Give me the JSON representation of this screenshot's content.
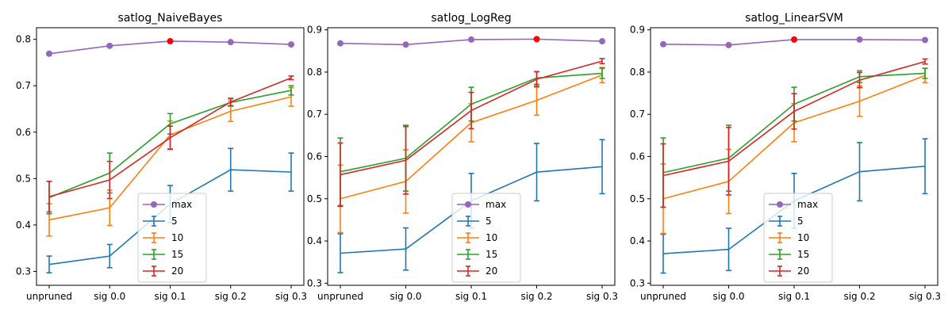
{
  "chart_data": [
    {
      "type": "line",
      "title": "satlog_NaiveBayes",
      "categories": [
        "unpruned",
        "sig 0.0",
        "sig 0.1",
        "sig 0.2",
        "sig 0.3"
      ],
      "ylim": [
        0.27,
        0.825
      ],
      "yticks": [
        0.3,
        0.4,
        0.5,
        0.6,
        0.7,
        0.8
      ],
      "ytick_labels": [
        "0.3",
        "0.4",
        "0.5",
        "0.6",
        "0.7",
        "0.8"
      ],
      "legend_placement": "lower-center",
      "max_series": {
        "name": "max",
        "color": "#9467bd",
        "values": [
          0.769,
          0.786,
          0.796,
          0.794,
          0.789
        ],
        "best_index": 2,
        "best_color": "#ff0000"
      },
      "series": [
        {
          "name": "5",
          "color": "#1f77b4",
          "values": [
            0.315,
            0.333,
            0.445,
            0.519,
            0.514
          ],
          "errors": [
            0.018,
            0.025,
            0.04,
            0.046,
            0.041
          ]
        },
        {
          "name": "10",
          "color": "#ff7f0e",
          "values": [
            0.411,
            0.437,
            0.594,
            0.645,
            0.676
          ],
          "errors": [
            0.035,
            0.038,
            0.03,
            0.022,
            0.02
          ]
        },
        {
          "name": "15",
          "color": "#2ca02c",
          "values": [
            0.459,
            0.512,
            0.618,
            0.664,
            0.69
          ],
          "errors": [
            0.035,
            0.043,
            0.022,
            0.008,
            0.01
          ]
        },
        {
          "name": "20",
          "color": "#d62728",
          "values": [
            0.461,
            0.497,
            0.588,
            0.665,
            0.717
          ],
          "errors": [
            0.033,
            0.04,
            0.025,
            0.008,
            0.004
          ]
        }
      ]
    },
    {
      "type": "line",
      "title": "satlog_LogReg",
      "categories": [
        "unpruned",
        "sig 0.0",
        "sig 0.1",
        "sig 0.2",
        "sig 0.3"
      ],
      "ylim": [
        0.295,
        0.905
      ],
      "yticks": [
        0.3,
        0.4,
        0.5,
        0.6,
        0.7,
        0.8,
        0.9
      ],
      "ytick_labels": [
        "0.3",
        "0.4",
        "0.5",
        "0.6",
        "0.7",
        "0.8",
        "0.9"
      ],
      "legend_placement": "lower-center",
      "max_series": {
        "name": "max",
        "color": "#9467bd",
        "values": [
          0.868,
          0.865,
          0.877,
          0.878,
          0.873
        ],
        "best_index": 3,
        "best_color": "#ff0000"
      },
      "series": [
        {
          "name": "5",
          "color": "#1f77b4",
          "values": [
            0.371,
            0.381,
            0.495,
            0.563,
            0.576
          ],
          "errors": [
            0.046,
            0.05,
            0.065,
            0.068,
            0.064
          ]
        },
        {
          "name": "10",
          "color": "#ff7f0e",
          "values": [
            0.5,
            0.541,
            0.68,
            0.733,
            0.793
          ],
          "errors": [
            0.08,
            0.075,
            0.045,
            0.035,
            0.018
          ]
        },
        {
          "name": "15",
          "color": "#2ca02c",
          "values": [
            0.564,
            0.596,
            0.724,
            0.786,
            0.797
          ],
          "errors": [
            0.08,
            0.078,
            0.04,
            0.015,
            0.012
          ]
        },
        {
          "name": "20",
          "color": "#d62728",
          "values": [
            0.557,
            0.591,
            0.709,
            0.783,
            0.826
          ],
          "errors": [
            0.075,
            0.08,
            0.043,
            0.018,
            0.006
          ]
        }
      ]
    },
    {
      "type": "line",
      "title": "satlog_LinearSVM",
      "categories": [
        "unpruned",
        "sig 0.0",
        "sig 0.1",
        "sig 0.2",
        "sig 0.3"
      ],
      "ylim": [
        0.295,
        0.905
      ],
      "yticks": [
        0.3,
        0.4,
        0.5,
        0.6,
        0.7,
        0.8,
        0.9
      ],
      "ytick_labels": [
        "0.3",
        "0.4",
        "0.5",
        "0.6",
        "0.7",
        "0.8",
        "0.9"
      ],
      "legend_placement": "lower-center",
      "max_series": {
        "name": "max",
        "color": "#9467bd",
        "values": [
          0.866,
          0.864,
          0.877,
          0.877,
          0.876
        ],
        "best_index": 2,
        "best_color": "#ff0000"
      },
      "series": [
        {
          "name": "5",
          "color": "#1f77b4",
          "values": [
            0.37,
            0.38,
            0.495,
            0.564,
            0.577
          ],
          "errors": [
            0.046,
            0.05,
            0.065,
            0.069,
            0.065
          ]
        },
        {
          "name": "10",
          "color": "#ff7f0e",
          "values": [
            0.5,
            0.541,
            0.68,
            0.731,
            0.792
          ],
          "errors": [
            0.082,
            0.076,
            0.045,
            0.036,
            0.017
          ]
        },
        {
          "name": "15",
          "color": "#2ca02c",
          "values": [
            0.562,
            0.596,
            0.724,
            0.789,
            0.797
          ],
          "errors": [
            0.082,
            0.078,
            0.04,
            0.014,
            0.012
          ]
        },
        {
          "name": "20",
          "color": "#d62728",
          "values": [
            0.555,
            0.589,
            0.707,
            0.781,
            0.825
          ],
          "errors": [
            0.075,
            0.08,
            0.042,
            0.018,
            0.006
          ]
        }
      ]
    }
  ]
}
